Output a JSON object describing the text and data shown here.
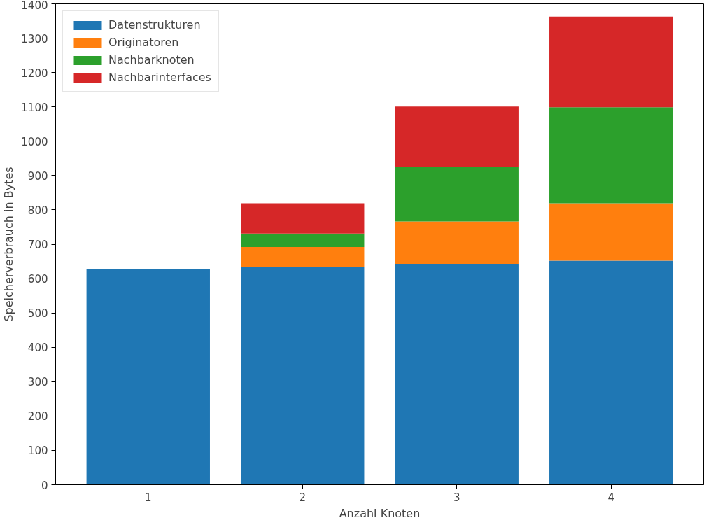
{
  "chart_data": {
    "type": "bar",
    "stacked": true,
    "xlabel": "Anzahl Knoten",
    "ylabel": "Speicherverbrauch in Bytes",
    "categories": [
      "1",
      "2",
      "3",
      "4"
    ],
    "series": [
      {
        "name": "Datenstrukturen",
        "color": "#1f77b4",
        "values": [
          628,
          634,
          643,
          652
        ]
      },
      {
        "name": "Originatoren",
        "color": "#ff7f0e",
        "values": [
          0,
          58,
          123,
          167
        ]
      },
      {
        "name": "Nachbarknoten",
        "color": "#2ca02c",
        "values": [
          0,
          39,
          159,
          280
        ]
      },
      {
        "name": "Nachbarinterfaces",
        "color": "#d62728",
        "values": [
          0,
          88,
          176,
          264
        ]
      }
    ],
    "ylim": [
      0,
      1400
    ],
    "yticks": [
      0,
      100,
      200,
      300,
      400,
      500,
      600,
      700,
      800,
      900,
      1000,
      1100,
      1200,
      1300,
      1400
    ],
    "grid": false,
    "legend": "top left"
  }
}
